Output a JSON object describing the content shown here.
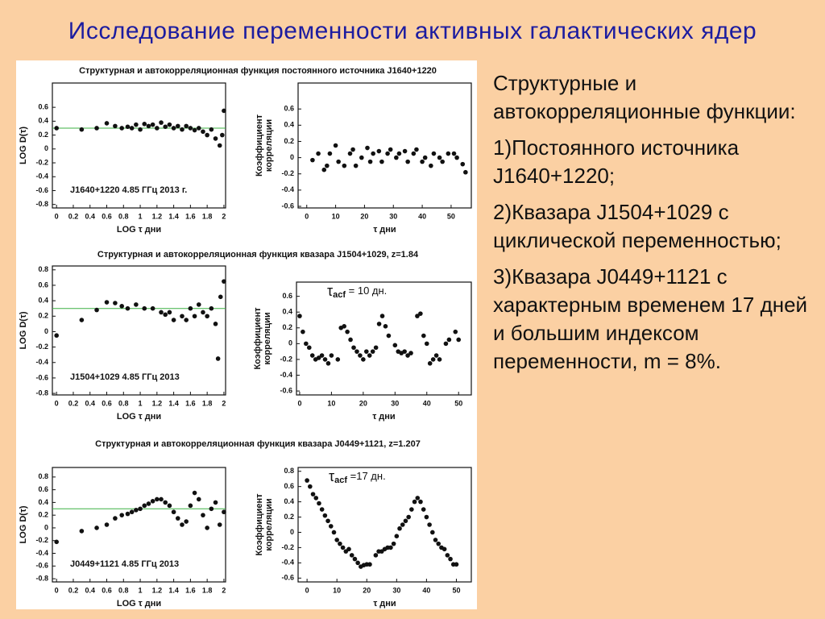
{
  "title": "Исследование переменности активных галактических ядер",
  "captions": [
    "Структурная и автокорреляционная функция постоянного источника J1640+1220",
    "Структурная и автокорреляционная функция квазара  J1504+1029,  z=1.84",
    "Структурная и автокорреляционная функция квазара  J0449+1121,  z=1.207"
  ],
  "text": {
    "paragraphs": [
      "Структурные и автокорреляционные функции:",
      "1)Постоянного источника J1640+1220;",
      "2)Квазара J1504+1029 с циклической переменностью;",
      "3)Квазара J0449+1121 с характерным временем 17 дней и большим индексом переменности, m = 8%."
    ]
  },
  "chart_data": [
    {
      "type": "scatter",
      "xlabel": "LOG τ дни",
      "ylabel": "LOG D(τ)",
      "annotation": "J1640+1220  4.85 ГГц  2013 г.",
      "color": "#111111",
      "reference_line": {
        "y": 0.3,
        "color": "#3cb043"
      },
      "x": [
        0,
        0.3,
        0.48,
        0.6,
        0.7,
        0.78,
        0.85,
        0.9,
        0.95,
        1.0,
        1.05,
        1.1,
        1.15,
        1.2,
        1.25,
        1.3,
        1.35,
        1.4,
        1.45,
        1.5,
        1.55,
        1.6,
        1.65,
        1.7,
        1.75,
        1.8,
        1.85,
        1.9,
        1.95,
        1.98,
        2.0
      ],
      "values": [
        0.3,
        0.28,
        0.3,
        0.37,
        0.33,
        0.3,
        0.32,
        0.3,
        0.35,
        0.28,
        0.36,
        0.33,
        0.35,
        0.3,
        0.38,
        0.32,
        0.35,
        0.3,
        0.33,
        0.28,
        0.33,
        0.3,
        0.27,
        0.3,
        0.25,
        0.2,
        0.28,
        0.15,
        0.05,
        0.2,
        0.55
      ],
      "xlim": [
        -0.05,
        2.02
      ],
      "xticks": [
        0,
        0.2,
        0.4,
        0.6,
        0.8,
        1,
        1.2,
        1.4,
        1.6,
        1.8,
        2
      ],
      "ylim": [
        -0.85,
        0.95
      ],
      "yticks": [
        -0.8,
        -0.6,
        -0.4,
        -0.2,
        0,
        0.2,
        0.4,
        0.6
      ]
    },
    {
      "type": "scatter",
      "xlabel": "τ дни",
      "ylabel": [
        "Коэффициент",
        "корреляции"
      ],
      "color": "#111111",
      "x": [
        2,
        4,
        6,
        7,
        8,
        10,
        11,
        13,
        15,
        16,
        17,
        19,
        21,
        22,
        23,
        25,
        26,
        28,
        29,
        31,
        32,
        34,
        35,
        37,
        38,
        40,
        41,
        43,
        44,
        46,
        47,
        49,
        51,
        52,
        54,
        55
      ],
      "values": [
        -0.03,
        0.05,
        -0.15,
        -0.1,
        0.05,
        0.15,
        -0.05,
        -0.1,
        0.05,
        0.1,
        -0.1,
        0.0,
        0.12,
        -0.05,
        0.05,
        0.08,
        -0.05,
        0.05,
        0.1,
        0.0,
        0.05,
        0.08,
        -0.05,
        0.05,
        0.1,
        -0.05,
        0.0,
        -0.1,
        0.05,
        0.0,
        -0.05,
        0.05,
        0.05,
        0.0,
        -0.08,
        -0.18
      ],
      "xlim": [
        -3,
        57
      ],
      "xticks": [
        0,
        10,
        20,
        30,
        40,
        50
      ],
      "ylim": [
        -0.62,
        0.92
      ],
      "yticks": [
        -0.6,
        -0.4,
        -0.2,
        0,
        0.2,
        0.4,
        0.6
      ]
    },
    {
      "type": "scatter",
      "xlabel": "LOG τ дни",
      "ylabel": "LOG D(τ)",
      "annotation": "J1504+1029  4.85 ГГц  2013",
      "color": "#111111",
      "reference_line": {
        "y": 0.3,
        "color": "#3cb043"
      },
      "x": [
        0,
        0.3,
        0.48,
        0.6,
        0.7,
        0.78,
        0.85,
        0.95,
        1.05,
        1.15,
        1.25,
        1.3,
        1.35,
        1.4,
        1.5,
        1.55,
        1.6,
        1.65,
        1.7,
        1.75,
        1.8,
        1.85,
        1.9,
        1.93,
        1.96,
        2.0
      ],
      "values": [
        -0.05,
        0.15,
        0.28,
        0.38,
        0.37,
        0.33,
        0.3,
        0.35,
        0.3,
        0.3,
        0.25,
        0.22,
        0.25,
        0.15,
        0.2,
        0.15,
        0.3,
        0.2,
        0.35,
        0.25,
        0.2,
        0.3,
        0.1,
        -0.35,
        0.45,
        0.65
      ],
      "xlim": [
        -0.05,
        2.02
      ],
      "xticks": [
        0,
        0.2,
        0.4,
        0.6,
        0.8,
        1,
        1.2,
        1.4,
        1.6,
        1.8,
        2
      ],
      "ylim": [
        -0.82,
        0.85
      ],
      "yticks": [
        -0.8,
        -0.6,
        -0.4,
        -0.2,
        0,
        0.2,
        0.4,
        0.6,
        0.8
      ]
    },
    {
      "type": "scatter",
      "xlabel": "τ дни",
      "ylabel": [
        "Коэффициент",
        "корреляции"
      ],
      "annotation": {
        "symbol": "τ",
        "subscript": "acf",
        "text": " = 10 дн."
      },
      "color": "#111111",
      "x": [
        0,
        1,
        2,
        3,
        4,
        5,
        6,
        7,
        8,
        9,
        10,
        12,
        13,
        14,
        15,
        16,
        17,
        18,
        19,
        20,
        21,
        22,
        23,
        24,
        25,
        26,
        27,
        28,
        30,
        31,
        32,
        33,
        34,
        35,
        37,
        38,
        39,
        40,
        41,
        42,
        43,
        44,
        46,
        47,
        49,
        50
      ],
      "values": [
        0.35,
        0.15,
        0.0,
        -0.05,
        -0.15,
        -0.2,
        -0.18,
        -0.15,
        -0.2,
        -0.25,
        -0.15,
        -0.2,
        0.2,
        0.22,
        0.15,
        0.05,
        -0.05,
        -0.1,
        -0.15,
        -0.2,
        -0.1,
        -0.15,
        -0.1,
        -0.05,
        0.25,
        0.35,
        0.22,
        0.1,
        -0.02,
        -0.1,
        -0.12,
        -0.1,
        -0.15,
        -0.12,
        0.35,
        0.38,
        0.1,
        0.0,
        -0.25,
        -0.2,
        -0.15,
        -0.2,
        0.0,
        0.05,
        0.15,
        0.05
      ],
      "xlim": [
        -1,
        54
      ],
      "xticks": [
        0,
        10,
        20,
        30,
        40,
        50
      ],
      "ylim": [
        -0.65,
        0.78
      ],
      "yticks": [
        -0.6,
        -0.4,
        -0.2,
        0,
        0.2,
        0.4,
        0.6
      ]
    },
    {
      "type": "scatter",
      "xlabel": "LOG τ дни",
      "ylabel": "LOG D(τ)",
      "annotation": "J0449+1121  4.85 ГГц  2013",
      "color": "#111111",
      "reference_line": {
        "y": 0.3,
        "color": "#3cb043"
      },
      "x": [
        0,
        0.3,
        0.48,
        0.6,
        0.7,
        0.78,
        0.85,
        0.9,
        0.95,
        1.0,
        1.05,
        1.1,
        1.15,
        1.2,
        1.25,
        1.3,
        1.35,
        1.4,
        1.45,
        1.5,
        1.55,
        1.6,
        1.65,
        1.7,
        1.75,
        1.8,
        1.85,
        1.9,
        1.95,
        2.0
      ],
      "values": [
        -0.22,
        -0.05,
        0.0,
        0.05,
        0.15,
        0.2,
        0.22,
        0.25,
        0.28,
        0.3,
        0.35,
        0.38,
        0.42,
        0.45,
        0.45,
        0.4,
        0.35,
        0.25,
        0.15,
        0.05,
        0.1,
        0.35,
        0.55,
        0.45,
        0.2,
        0.0,
        0.3,
        0.4,
        0.05,
        0.25
      ],
      "xlim": [
        -0.05,
        2.02
      ],
      "xticks": [
        0,
        0.2,
        0.4,
        0.6,
        0.8,
        1,
        1.2,
        1.4,
        1.6,
        1.8,
        2
      ],
      "ylim": [
        -0.85,
        0.95
      ],
      "yticks": [
        -0.8,
        -0.6,
        -0.4,
        -0.2,
        0,
        0.2,
        0.4,
        0.6,
        0.8
      ]
    },
    {
      "type": "scatter",
      "xlabel": "τ дни",
      "ylabel": [
        "Коэффициент",
        "корреляции"
      ],
      "annotation": {
        "symbol": "τ",
        "subscript": "acf",
        "text": " =17 дн."
      },
      "color": "#111111",
      "x": [
        0,
        1,
        2,
        3,
        4,
        5,
        6,
        7,
        8,
        9,
        10,
        11,
        12,
        13,
        14,
        15,
        16,
        17,
        18,
        19,
        20,
        21,
        23,
        24,
        25,
        26,
        27,
        28,
        29,
        30,
        31,
        32,
        33,
        34,
        35,
        36,
        37,
        38,
        39,
        40,
        41,
        42,
        43,
        44,
        45,
        46,
        47,
        48,
        49,
        50
      ],
      "values": [
        0.68,
        0.6,
        0.5,
        0.45,
        0.38,
        0.3,
        0.22,
        0.15,
        0.08,
        0.0,
        -0.1,
        -0.15,
        -0.2,
        -0.25,
        -0.22,
        -0.3,
        -0.35,
        -0.4,
        -0.45,
        -0.43,
        -0.42,
        -0.42,
        -0.3,
        -0.25,
        -0.25,
        -0.22,
        -0.2,
        -0.2,
        -0.15,
        -0.05,
        0.05,
        0.1,
        0.15,
        0.2,
        0.3,
        0.4,
        0.45,
        0.4,
        0.3,
        0.2,
        0.1,
        0.0,
        -0.1,
        -0.15,
        -0.2,
        -0.22,
        -0.3,
        -0.35,
        -0.42,
        -0.42
      ],
      "xlim": [
        -3,
        55
      ],
      "xticks": [
        0,
        10,
        20,
        30,
        40,
        50
      ],
      "ylim": [
        -0.65,
        0.85
      ],
      "yticks": [
        -0.6,
        -0.4,
        -0.2,
        0,
        0.2,
        0.4,
        0.6,
        0.8
      ]
    }
  ]
}
